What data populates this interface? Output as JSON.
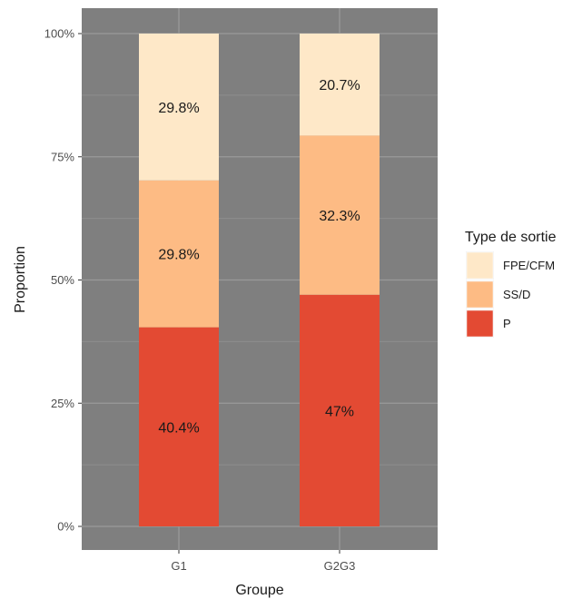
{
  "chart_data": {
    "type": "bar",
    "stacked": true,
    "percent": true,
    "categories": [
      "G1",
      "G2G3"
    ],
    "series": [
      {
        "name": "P",
        "color": "#e34a33",
        "values": [
          40.4,
          47.0
        ],
        "labels": [
          "40.4%",
          "47%"
        ]
      },
      {
        "name": "SS/D",
        "color": "#fdbb84",
        "values": [
          29.8,
          32.3
        ],
        "labels": [
          "29.8%",
          "32.3%"
        ]
      },
      {
        "name": "FPE/CFM",
        "color": "#fee8c8",
        "values": [
          29.8,
          20.7
        ],
        "labels": [
          "29.8%",
          "20.7%"
        ]
      }
    ],
    "xlabel": "Groupe",
    "ylabel": "Proportion",
    "ylim": [
      0,
      100
    ],
    "yticks": [
      0,
      25,
      50,
      75,
      100
    ],
    "ytick_labels": [
      "0%",
      "25%",
      "50%",
      "75%",
      "100%"
    ],
    "legend": {
      "title": "Type de sortie",
      "placement": "right",
      "order": [
        "FPE/CFM",
        "SS/D",
        "P"
      ]
    },
    "panel_background": "#7f7f7f",
    "grid": true
  }
}
